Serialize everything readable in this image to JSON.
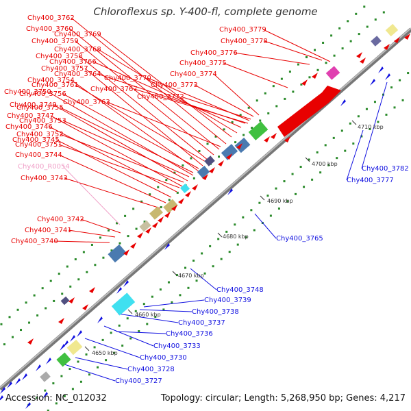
{
  "title": "Chloroflexus sp. Y-400-fl, complete genome",
  "footer": {
    "accession": "Accession: NC_012032",
    "info": "Topology: circular; Length: 5,268,950 bp; Genes: 4,217"
  },
  "colors": {
    "forward": "#e80000",
    "reverse": "#1010e0",
    "rna": "#f0a0c8",
    "backbone": "#888888"
  },
  "ticks": [
    "4650 kbp",
    "4660 kbp",
    "4670 kbp",
    "4680 kbp",
    "4690 kbp",
    "4700 kbp",
    "4710 kbp"
  ],
  "labels_forward": [
    "Chy400_3762",
    "Chy400_3760",
    "Chy400_3759",
    "Chy400_3758",
    "Chy400_3757",
    "Chy400_3754",
    "Chy400_3750",
    "Chy400_3749",
    "Chy400_3747",
    "Chy400_3746",
    "Chy400_3745",
    "Chy400_3744",
    "Chy400_3743",
    "Chy400_3742",
    "Chy400_3741",
    "Chy400_3740",
    "Chy400_3769",
    "Chy400_3768",
    "Chy400_3766",
    "Chy400_3764",
    "Chy400_3761",
    "Chy400_3756",
    "Chy400_3755",
    "Chy400_3753",
    "Chy400_3752",
    "Chy400_3751",
    "Chy400_3770",
    "Chy400_3767",
    "Chy400_3763",
    "Chy400_3773",
    "Chy400_3772",
    "Chy400_3774",
    "Chy400_3775",
    "Chy400_3776",
    "Chy400_3778",
    "Chy400_3779"
  ],
  "label_rna": "Chy400_R0054",
  "labels_reverse": [
    "Chy400_3782",
    "Chy400_3777",
    "Chy400_3765",
    "Chy400_3748",
    "Chy400_3739",
    "Chy400_3738",
    "Chy400_3737",
    "Chy400_3736",
    "Chy400_3733",
    "Chy400_3730",
    "Chy400_3728",
    "Chy400_3727"
  ]
}
